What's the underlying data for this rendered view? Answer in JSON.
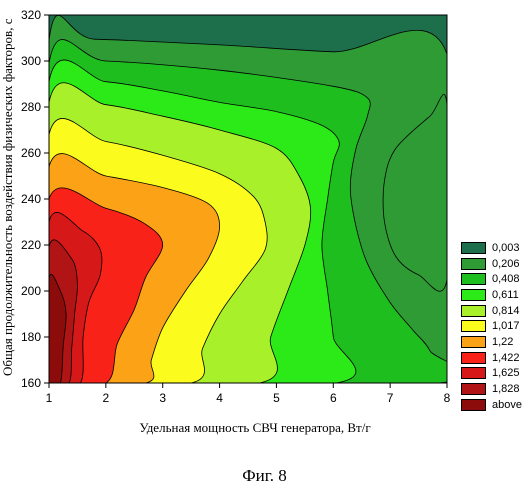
{
  "figure_caption": "Фиг. 8",
  "chart_data": {
    "type": "heatmap",
    "subtype": "filled-contour",
    "title": "",
    "xlabel": "Удельная мощность СВЧ генератора, Вт/г",
    "ylabel": "Общая продолжительность воздействия физических факторов, с",
    "xlim": [
      1,
      8
    ],
    "ylim": [
      160,
      320
    ],
    "x_ticks": [
      1,
      2,
      3,
      4,
      5,
      6,
      7,
      8
    ],
    "y_ticks": [
      160,
      180,
      200,
      220,
      240,
      260,
      280,
      300,
      320
    ],
    "grid": false,
    "legend_position": "right",
    "levels": [
      {
        "label": "0,003",
        "color": "#1d6e4a"
      },
      {
        "label": "0,206",
        "color": "#2e9b35"
      },
      {
        "label": "0,408",
        "color": "#1fbe1f"
      },
      {
        "label": "0,611",
        "color": "#2bea18"
      },
      {
        "label": "0,814",
        "color": "#a7f02a"
      },
      {
        "label": "1,017",
        "color": "#fbfb1e"
      },
      {
        "label": "1,22",
        "color": "#fba216"
      },
      {
        "label": "1,422",
        "color": "#f82218"
      },
      {
        "label": "1,625",
        "color": "#d61818"
      },
      {
        "label": "1,828",
        "color": "#b01414"
      },
      {
        "label": "above",
        "color": "#8c0c0c"
      }
    ],
    "contour_regions": [
      {
        "level": "0,206",
        "points": [
          [
            1,
            160
          ],
          [
            1,
            309
          ],
          [
            1.8,
            309.5
          ],
          [
            4,
            307
          ],
          [
            6,
            304
          ],
          [
            8,
            303
          ],
          [
            8,
            160
          ],
          [
            7.2,
            160
          ],
          [
            6.6,
            166
          ],
          [
            6,
            171
          ],
          [
            5.3,
            172
          ],
          [
            4.5,
            168
          ],
          [
            4,
            160
          ]
        ]
      },
      {
        "level": "0,206",
        "points": [
          [
            8,
            281
          ],
          [
            7.7,
            276
          ],
          [
            7.1,
            262
          ],
          [
            6.9,
            248
          ],
          [
            6.9,
            230
          ],
          [
            7.1,
            215
          ],
          [
            7.5,
            207
          ],
          [
            8,
            205
          ]
        ]
      },
      {
        "level": "0,408",
        "points": [
          [
            1,
            160
          ],
          [
            1,
            299
          ],
          [
            2,
            300
          ],
          [
            4,
            296
          ],
          [
            6,
            289
          ],
          [
            6.6,
            284
          ],
          [
            6.6,
            276
          ],
          [
            6.4,
            262
          ],
          [
            6.3,
            245
          ],
          [
            6.4,
            228
          ],
          [
            6.6,
            212
          ],
          [
            7,
            195
          ],
          [
            7.4,
            183
          ],
          [
            7.7,
            174
          ],
          [
            7.85,
            160
          ]
        ]
      },
      {
        "level": "0,611",
        "points": [
          [
            1,
            160
          ],
          [
            1,
            291
          ],
          [
            2,
            291
          ],
          [
            3,
            287
          ],
          [
            4,
            282
          ],
          [
            5,
            278
          ],
          [
            5.8,
            272
          ],
          [
            6.1,
            265
          ],
          [
            6,
            256
          ],
          [
            5.9,
            240
          ],
          [
            5.8,
            220
          ],
          [
            5.9,
            200
          ],
          [
            6,
            180
          ],
          [
            6.05,
            160
          ]
        ]
      },
      {
        "level": "0,814",
        "points": [
          [
            1,
            160
          ],
          [
            1,
            282
          ],
          [
            2,
            281
          ],
          [
            3,
            276
          ],
          [
            4,
            270
          ],
          [
            5,
            262
          ],
          [
            5.4,
            250
          ],
          [
            5.6,
            236
          ],
          [
            5.5,
            220
          ],
          [
            5.2,
            200
          ],
          [
            4.9,
            180
          ],
          [
            4.7,
            160
          ]
        ]
      },
      {
        "level": "1,017",
        "points": [
          [
            1,
            160
          ],
          [
            1,
            268
          ],
          [
            2,
            265
          ],
          [
            3,
            259
          ],
          [
            4,
            251
          ],
          [
            4.6,
            241
          ],
          [
            4.8,
            230
          ],
          [
            4.8,
            218
          ],
          [
            4.4,
            204
          ],
          [
            4,
            190
          ],
          [
            3.7,
            175
          ],
          [
            3.5,
            160
          ]
        ]
      },
      {
        "level": "1,22",
        "points": [
          [
            1,
            160
          ],
          [
            1,
            254
          ],
          [
            2,
            250
          ],
          [
            3,
            245
          ],
          [
            3.8,
            238
          ],
          [
            4,
            228
          ],
          [
            3.8,
            214
          ],
          [
            3.4,
            200
          ],
          [
            3,
            184
          ],
          [
            2.8,
            170
          ],
          [
            2.7,
            160
          ]
        ]
      },
      {
        "level": "1,422",
        "points": [
          [
            1,
            160
          ],
          [
            1,
            240
          ],
          [
            2,
            236
          ],
          [
            2.7,
            229
          ],
          [
            3,
            220
          ],
          [
            2.7,
            206
          ],
          [
            2.5,
            192
          ],
          [
            2.2,
            177
          ],
          [
            2,
            160
          ]
        ]
      },
      {
        "level": "1,625",
        "points": [
          [
            1,
            160
          ],
          [
            1,
            230
          ],
          [
            1.6,
            226
          ],
          [
            1.9,
            218
          ],
          [
            1.9,
            207
          ],
          [
            1.7,
            195
          ],
          [
            1.6,
            180
          ],
          [
            1.55,
            160
          ]
        ]
      },
      {
        "level": "1,828",
        "points": [
          [
            1,
            160
          ],
          [
            1,
            219
          ],
          [
            1.4,
            214
          ],
          [
            1.5,
            203
          ],
          [
            1.45,
            190
          ],
          [
            1.4,
            175
          ],
          [
            1.35,
            160
          ]
        ]
      },
      {
        "level": "above",
        "points": [
          [
            1,
            160
          ],
          [
            1,
            205
          ],
          [
            1.2,
            200
          ],
          [
            1.3,
            190
          ],
          [
            1.25,
            176
          ],
          [
            1.2,
            160
          ]
        ]
      }
    ]
  }
}
